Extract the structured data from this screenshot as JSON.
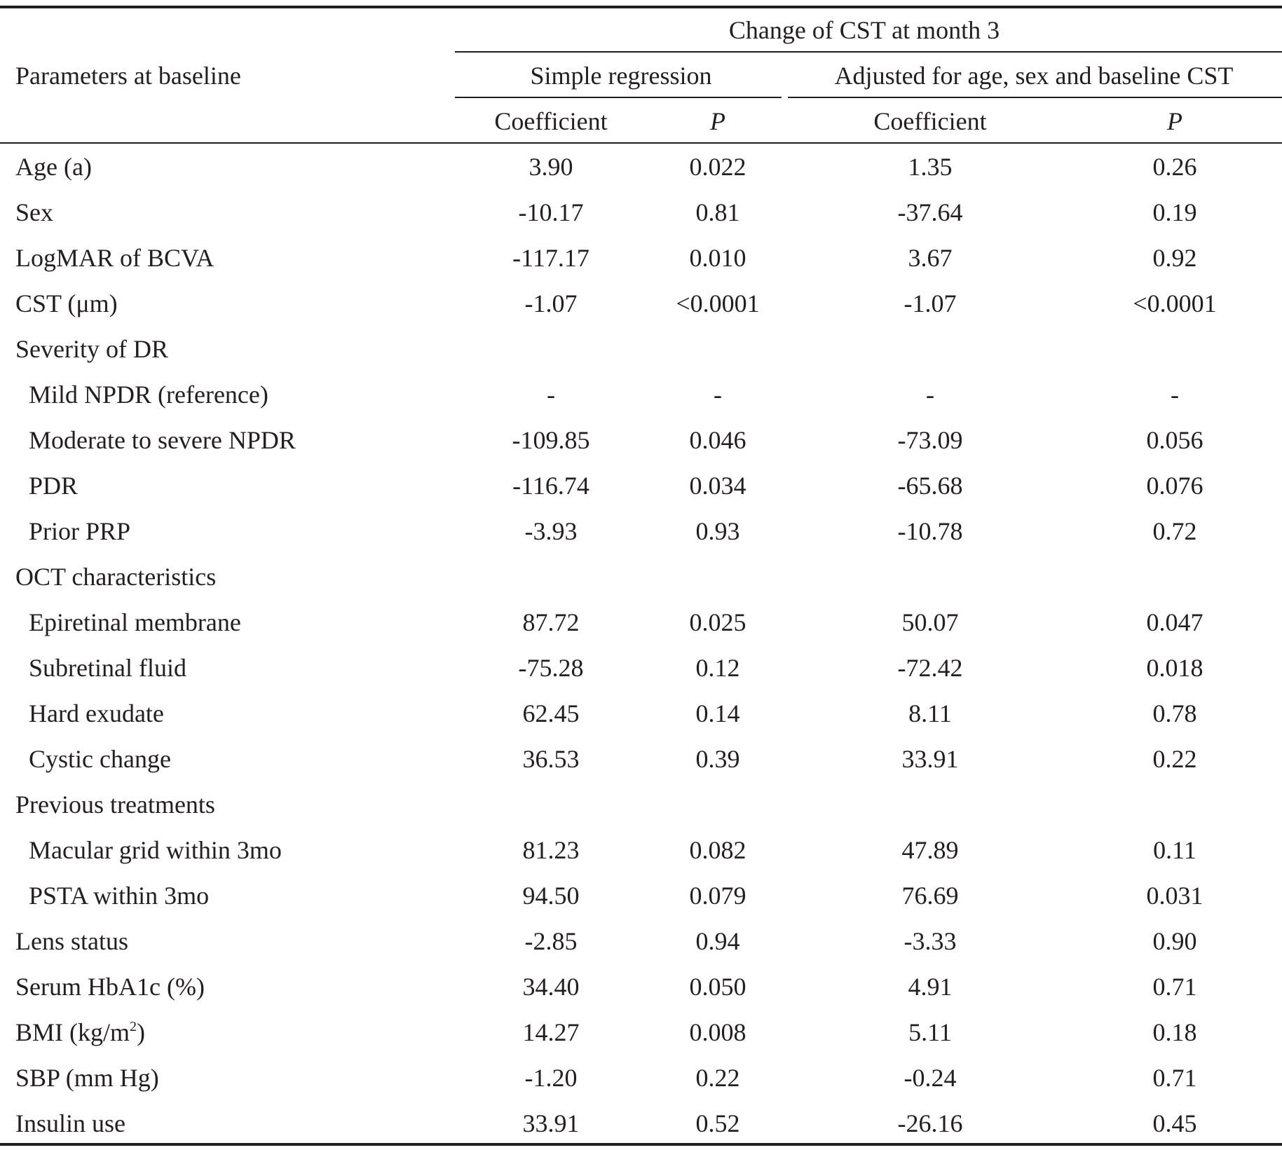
{
  "header": {
    "group_title": "Change of CST at month 3",
    "stub_label": "Parameters at baseline",
    "simple_label": "Simple regression",
    "adjusted_label": "Adjusted for age, sex and baseline CST",
    "coef_label": "Coefficient",
    "p_label": "P"
  },
  "rows": [
    {
      "label": "Age (a)",
      "indent": false,
      "simple_coef": "3.90",
      "simple_p": "0.022",
      "adj_coef": "1.35",
      "adj_p": "0.26"
    },
    {
      "label": "Sex",
      "indent": false,
      "simple_coef": "-10.17",
      "simple_p": "0.81",
      "adj_coef": "-37.64",
      "adj_p": "0.19"
    },
    {
      "label": "LogMAR of BCVA",
      "indent": false,
      "simple_coef": "-117.17",
      "simple_p": "0.010",
      "adj_coef": "3.67",
      "adj_p": "0.92"
    },
    {
      "label": "CST (μm)",
      "indent": false,
      "simple_coef": "-1.07",
      "simple_p": "<0.0001",
      "adj_coef": "-1.07",
      "adj_p": "<0.0001"
    },
    {
      "label": "Severity of DR",
      "indent": false,
      "simple_coef": "",
      "simple_p": "",
      "adj_coef": "",
      "adj_p": ""
    },
    {
      "label": "Mild NPDR (reference)",
      "indent": true,
      "simple_coef": "-",
      "simple_p": "-",
      "adj_coef": "-",
      "adj_p": "-"
    },
    {
      "label": "Moderate to severe NPDR",
      "indent": true,
      "simple_coef": "-109.85",
      "simple_p": "0.046",
      "adj_coef": "-73.09",
      "adj_p": "0.056"
    },
    {
      "label": "PDR",
      "indent": true,
      "simple_coef": "-116.74",
      "simple_p": "0.034",
      "adj_coef": "-65.68",
      "adj_p": "0.076"
    },
    {
      "label": "Prior PRP",
      "indent": true,
      "simple_coef": "-3.93",
      "simple_p": "0.93",
      "adj_coef": "-10.78",
      "adj_p": "0.72"
    },
    {
      "label": "OCT characteristics",
      "indent": false,
      "simple_coef": "",
      "simple_p": "",
      "adj_coef": "",
      "adj_p": ""
    },
    {
      "label": "Epiretinal membrane",
      "indent": true,
      "simple_coef": "87.72",
      "simple_p": "0.025",
      "adj_coef": "50.07",
      "adj_p": "0.047"
    },
    {
      "label": "Subretinal fluid",
      "indent": true,
      "simple_coef": "-75.28",
      "simple_p": "0.12",
      "adj_coef": "-72.42",
      "adj_p": "0.018"
    },
    {
      "label": "Hard exudate",
      "indent": true,
      "simple_coef": "62.45",
      "simple_p": "0.14",
      "adj_coef": "8.11",
      "adj_p": "0.78"
    },
    {
      "label": "Cystic change",
      "indent": true,
      "simple_coef": "36.53",
      "simple_p": "0.39",
      "adj_coef": "33.91",
      "adj_p": "0.22"
    },
    {
      "label": "Previous treatments",
      "indent": false,
      "simple_coef": "",
      "simple_p": "",
      "adj_coef": "",
      "adj_p": ""
    },
    {
      "label": "Macular grid within 3mo",
      "indent": true,
      "simple_coef": "81.23",
      "simple_p": "0.082",
      "adj_coef": "47.89",
      "adj_p": "0.11"
    },
    {
      "label": "PSTA within 3mo",
      "indent": true,
      "simple_coef": "94.50",
      "simple_p": "0.079",
      "adj_coef": "76.69",
      "adj_p": "0.031"
    },
    {
      "label": "Lens status",
      "indent": false,
      "simple_coef": "-2.85",
      "simple_p": "0.94",
      "adj_coef": "-3.33",
      "adj_p": "0.90"
    },
    {
      "label": "Serum HbA1c (%)",
      "indent": false,
      "simple_coef": "34.40",
      "simple_p": "0.050",
      "adj_coef": "4.91",
      "adj_p": "0.71"
    },
    {
      "label": "BMI (kg/m",
      "sup": "2",
      "after_sup": ")",
      "indent": false,
      "simple_coef": "14.27",
      "simple_p": "0.008",
      "adj_coef": "5.11",
      "adj_p": "0.18"
    },
    {
      "label": "SBP (mm Hg)",
      "indent": false,
      "simple_coef": "-1.20",
      "simple_p": "0.22",
      "adj_coef": "-0.24",
      "adj_p": "0.71"
    },
    {
      "label": "Insulin use",
      "indent": false,
      "simple_coef": "33.91",
      "simple_p": "0.52",
      "adj_coef": "-26.16",
      "adj_p": "0.45"
    }
  ]
}
